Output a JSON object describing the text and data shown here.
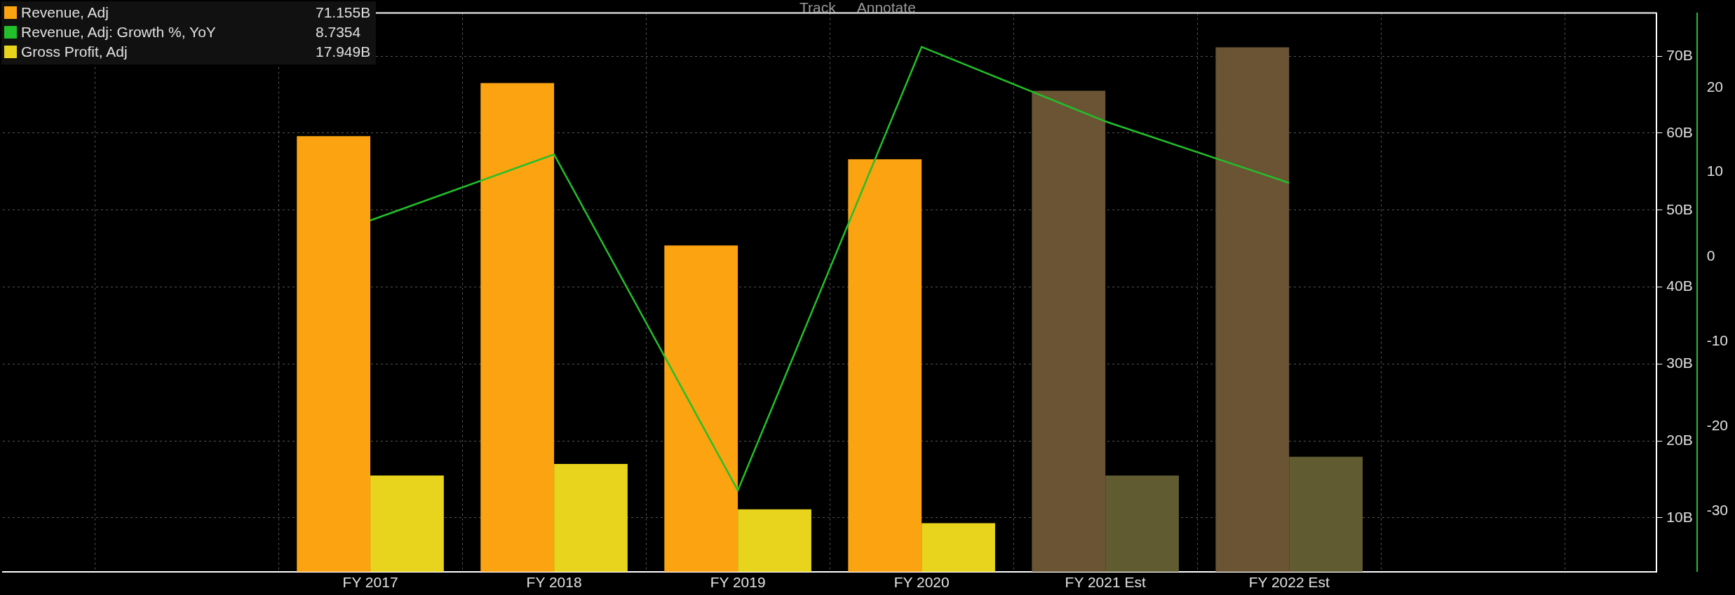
{
  "chart_data": {
    "type": "bar",
    "categories": [
      null,
      null,
      "FY 2017",
      "FY 2018",
      "FY 2019",
      "FY 2020",
      "FY 2021 Est",
      "FY 2022 Est",
      null,
      null
    ],
    "series": [
      {
        "name": "Revenue, Adj",
        "color": "#fca311",
        "colors": [
          null,
          null,
          "#fca311",
          "#fca311",
          "#fca311",
          "#fca311",
          "#6b5434",
          "#6b5434",
          null,
          null
        ],
        "values": [
          null,
          null,
          59.6,
          66.5,
          45.4,
          56.6,
          65.5,
          71.155,
          null,
          null
        ]
      },
      {
        "name": "Revenue, Adj: Growth %, YoY",
        "type": "line",
        "axis": "y2",
        "color": "#22c02a",
        "values": [
          null,
          null,
          4.3,
          12.1,
          -27.6,
          24.8,
          16.0,
          8.7354,
          null,
          null
        ]
      },
      {
        "name": "Gross Profit, Adj",
        "color": "#e8d41c",
        "colors": [
          null,
          null,
          "#e8d41c",
          "#e8d41c",
          "#e8d41c",
          "#e8d41c",
          "#605b30",
          "#605b30",
          null,
          null
        ],
        "values": [
          null,
          null,
          15.5,
          17.0,
          11.1,
          9.3,
          15.5,
          17.949,
          null,
          null
        ]
      }
    ],
    "ylim": [
      3,
      75.6
    ],
    "yticks": [
      {
        "value": 10,
        "label": "10B"
      },
      {
        "value": 20,
        "label": "20B"
      },
      {
        "value": 30,
        "label": "30B"
      },
      {
        "value": 40,
        "label": "40B"
      },
      {
        "value": 50,
        "label": "50B"
      },
      {
        "value": 60,
        "label": "60B"
      },
      {
        "value": 70,
        "label": "70B"
      }
    ],
    "y2lim": [
      -37.2,
      28.8
    ],
    "y2ticks": [
      -30,
      -20,
      -10,
      0,
      10,
      20
    ],
    "grid": true,
    "legend": "top left",
    "marker": "none",
    "line_style": "solid",
    "annotations": [
      "Track",
      "Annotate",
      "71.155B",
      "8.7354",
      "17.949B"
    ]
  }
}
